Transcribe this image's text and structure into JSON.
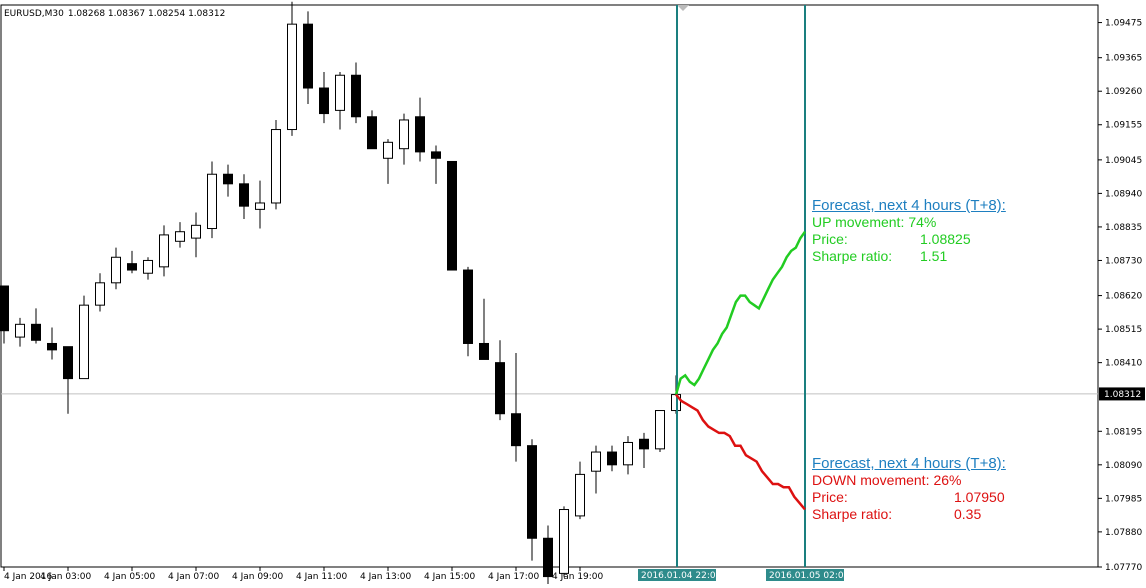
{
  "header": {
    "symbol_timeframe": "EURUSD,M30",
    "ohlc": "1.08268 1.08367 1.08254 1.08312"
  },
  "price_axis": {
    "labels": [
      "1.09475",
      "1.09365",
      "1.09260",
      "1.09155",
      "1.09045",
      "1.08940",
      "1.08835",
      "1.08730",
      "1.08620",
      "1.08515",
      "1.08410",
      "1.08195",
      "1.08090",
      "1.07985",
      "1.07880",
      "1.07770"
    ],
    "current_price": "1.08312"
  },
  "time_axis": {
    "labels": [
      "4 Jan 2016",
      "4 Jan 03:00",
      "4 Jan 05:00",
      "4 Jan 07:00",
      "4 Jan 09:00",
      "4 Jan 11:00",
      "4 Jan 13:00",
      "4 Jan 15:00",
      "4 Jan 17:00",
      "4 Jan 19:00"
    ],
    "marker_1": "2016.01.04 22:00",
    "marker_2": "2016.01.05 02:00"
  },
  "forecast_up": {
    "title": "Forecast, next 4 hours (T+8):",
    "movement_label": "UP movement:",
    "movement_value": "74%",
    "price_label": "Price:",
    "price_value": "1.08825",
    "sharpe_label": "Sharpe ratio:",
    "sharpe_value": "1.51",
    "color": "#22cc22"
  },
  "forecast_down": {
    "title": "Forecast, next 4 hours (T+8):",
    "movement_label": "DOWN movement:",
    "movement_value": "26%",
    "price_label": "Price:",
    "price_value": "1.07950",
    "sharpe_label": "Sharpe ratio:",
    "sharpe_value": "0.35",
    "color": "#dd1111"
  },
  "colors": {
    "background": "#ffffff",
    "frame": "#000000",
    "vertical_markers": "#1a7f7f",
    "marker_label_bg": "#2e8b8b",
    "bull_candle": "#ffffff",
    "bear_candle": "#000000",
    "title_link": "#1e7fc0"
  },
  "chart_data": {
    "type": "candlestick",
    "symbol": "EURUSD",
    "timeframe": "M30",
    "candles": [
      {
        "o": 1.0865,
        "h": 1.0865,
        "l": 1.0847,
        "c": 1.0851
      },
      {
        "o": 1.0849,
        "h": 1.0855,
        "l": 1.0846,
        "c": 1.0853
      },
      {
        "o": 1.0853,
        "h": 1.0858,
        "l": 1.0847,
        "c": 1.0848
      },
      {
        "o": 1.0847,
        "h": 1.0852,
        "l": 1.0842,
        "c": 1.0845
      },
      {
        "o": 1.0846,
        "h": 1.0846,
        "l": 1.0825,
        "c": 1.0836
      },
      {
        "o": 1.0836,
        "h": 1.0862,
        "l": 1.0836,
        "c": 1.0859
      },
      {
        "o": 1.0859,
        "h": 1.0869,
        "l": 1.0857,
        "c": 1.0866
      },
      {
        "o": 1.0866,
        "h": 1.0877,
        "l": 1.0864,
        "c": 1.0874
      },
      {
        "o": 1.0872,
        "h": 1.0876,
        "l": 1.0869,
        "c": 1.087
      },
      {
        "o": 1.0869,
        "h": 1.0874,
        "l": 1.0867,
        "c": 1.0873
      },
      {
        "o": 1.0871,
        "h": 1.0884,
        "l": 1.0868,
        "c": 1.0881
      },
      {
        "o": 1.0879,
        "h": 1.0885,
        "l": 1.0877,
        "c": 1.0882
      },
      {
        "o": 1.088,
        "h": 1.0888,
        "l": 1.0874,
        "c": 1.0884
      },
      {
        "o": 1.0883,
        "h": 1.0904,
        "l": 1.088,
        "c": 1.09
      },
      {
        "o": 1.09,
        "h": 1.0903,
        "l": 1.0893,
        "c": 1.0897
      },
      {
        "o": 1.0897,
        "h": 1.09,
        "l": 1.0886,
        "c": 1.089
      },
      {
        "o": 1.0889,
        "h": 1.0898,
        "l": 1.0883,
        "c": 1.0891
      },
      {
        "o": 1.0891,
        "h": 1.0917,
        "l": 1.0889,
        "c": 1.0914
      },
      {
        "o": 1.0914,
        "h": 1.0954,
        "l": 1.0912,
        "c": 1.0947
      },
      {
        "o": 1.0947,
        "h": 1.0951,
        "l": 1.0922,
        "c": 1.0927
      },
      {
        "o": 1.0927,
        "h": 1.0932,
        "l": 1.0916,
        "c": 1.0919
      },
      {
        "o": 1.092,
        "h": 1.0932,
        "l": 1.0914,
        "c": 1.0931
      },
      {
        "o": 1.0931,
        "h": 1.0935,
        "l": 1.0916,
        "c": 1.0918
      },
      {
        "o": 1.0918,
        "h": 1.092,
        "l": 1.0908,
        "c": 1.0908
      },
      {
        "o": 1.0905,
        "h": 1.0911,
        "l": 1.0897,
        "c": 1.091
      },
      {
        "o": 1.0908,
        "h": 1.0919,
        "l": 1.0903,
        "c": 1.0917
      },
      {
        "o": 1.0918,
        "h": 1.0924,
        "l": 1.0904,
        "c": 1.0907
      },
      {
        "o": 1.0907,
        "h": 1.0909,
        "l": 1.0897,
        "c": 1.0905
      },
      {
        "o": 1.0904,
        "h": 1.0904,
        "l": 1.087,
        "c": 1.087
      },
      {
        "o": 1.087,
        "h": 1.0871,
        "l": 1.0843,
        "c": 1.0847
      },
      {
        "o": 1.0847,
        "h": 1.0861,
        "l": 1.0842,
        "c": 1.0842
      },
      {
        "o": 1.0841,
        "h": 1.0848,
        "l": 1.0823,
        "c": 1.0825
      },
      {
        "o": 1.0825,
        "h": 1.0844,
        "l": 1.081,
        "c": 1.0815
      },
      {
        "o": 1.0815,
        "h": 1.0817,
        "l": 1.0779,
        "c": 1.0786
      },
      {
        "o": 1.0786,
        "h": 1.079,
        "l": 1.0769,
        "c": 1.0774
      },
      {
        "o": 1.0775,
        "h": 1.0796,
        "l": 1.0774,
        "c": 1.0795
      },
      {
        "o": 1.0793,
        "h": 1.081,
        "l": 1.0792,
        "c": 1.0806
      },
      {
        "o": 1.0807,
        "h": 1.0815,
        "l": 1.08,
        "c": 1.0813
      },
      {
        "o": 1.0813,
        "h": 1.0815,
        "l": 1.0807,
        "c": 1.0809
      },
      {
        "o": 1.0809,
        "h": 1.0818,
        "l": 1.0806,
        "c": 1.0816
      },
      {
        "o": 1.0817,
        "h": 1.0819,
        "l": 1.0808,
        "c": 1.0814
      },
      {
        "o": 1.0814,
        "h": 1.0825,
        "l": 1.0813,
        "c": 1.0826
      },
      {
        "o": 1.0826,
        "h": 1.0837,
        "l": 1.0825,
        "c": 1.0831
      }
    ],
    "forecast_up_path": [
      1.0831,
      1.0836,
      1.0837,
      1.0835,
      1.0834,
      1.0836,
      1.0839,
      1.0842,
      1.0845,
      1.0847,
      1.085,
      1.0852,
      1.0856,
      1.086,
      1.0862,
      1.0862,
      1.086,
      1.0859,
      1.0858,
      1.0861,
      1.0864,
      1.0867,
      1.0869,
      1.0871,
      1.0874,
      1.0876,
      1.0877,
      1.088,
      1.0882
    ],
    "forecast_down_path": [
      1.0831,
      1.0829,
      1.0828,
      1.0827,
      1.0826,
      1.0823,
      1.0821,
      1.082,
      1.0819,
      1.0819,
      1.0818,
      1.0815,
      1.0815,
      1.0812,
      1.0811,
      1.081,
      1.0807,
      1.0805,
      1.0803,
      1.0803,
      1.0802,
      1.0802,
      1.0799,
      1.0797,
      1.0795
    ],
    "ylim": [
      1.0777,
      1.0953
    ]
  }
}
